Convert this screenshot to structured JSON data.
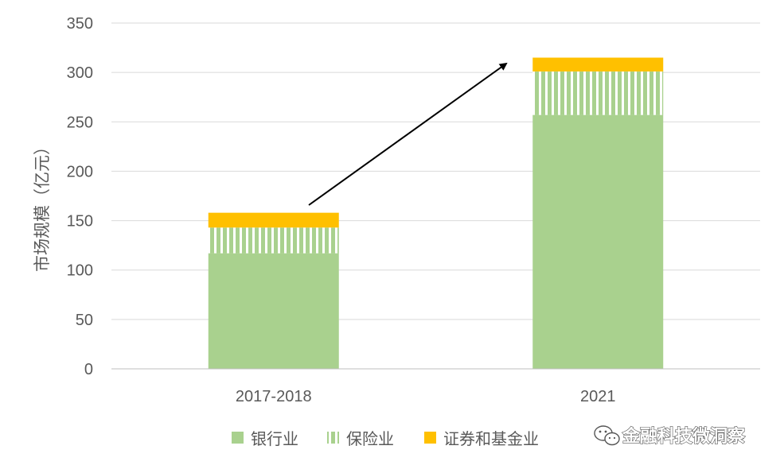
{
  "chart_data": {
    "type": "bar",
    "stacked": true,
    "categories": [
      "2017-2018",
      "2021"
    ],
    "series": [
      {
        "name": "银行业",
        "values": [
          117,
          257
        ],
        "color": "#a9d18e",
        "pattern": "solid"
      },
      {
        "name": "保险业",
        "values": [
          26,
          44
        ],
        "color": "#a9d18e",
        "pattern": "vertical-stripes"
      },
      {
        "name": "证券和基金业",
        "values": [
          15,
          14
        ],
        "color": "#ffc000",
        "pattern": "solid"
      }
    ],
    "ylabel": "市场规模（亿元）",
    "ylim": [
      0,
      350
    ],
    "yticks": [
      0,
      50,
      100,
      150,
      200,
      250,
      300,
      350
    ],
    "grid": true,
    "legend_position": "bottom",
    "annotation": "upward-arrow"
  },
  "watermark": {
    "text": "金融科技微洞察",
    "icon": "wechat-icon"
  }
}
